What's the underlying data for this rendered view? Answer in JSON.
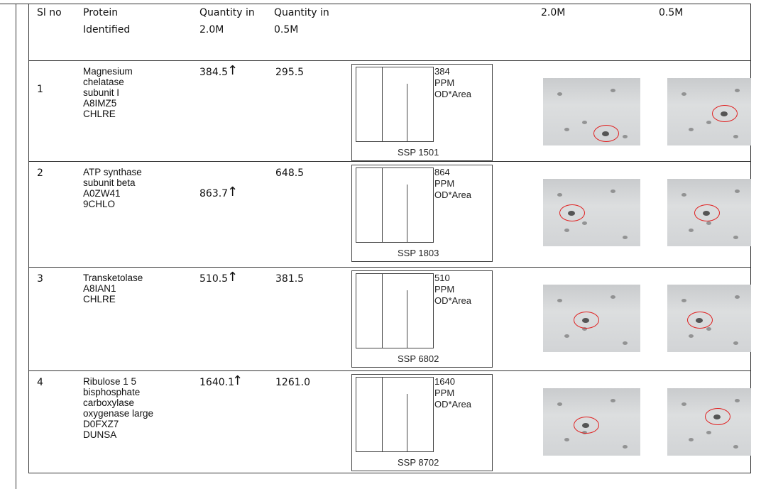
{
  "table": {
    "header": {
      "sl_no": "Sl no",
      "protein": "Protein Identified",
      "qty_2": "Quantity in 2.0M",
      "qty_05": "Quantity in 0.5M",
      "gel_2": "2.0M",
      "gel_05": "0.5M"
    },
    "rows": [
      {
        "sl": "1",
        "protein": [
          "Magnesium",
          "chelatase",
          "subunit I",
          "A8IMZ5",
          "CHLRE"
        ],
        "qty_2": "384.5",
        "trend": "↑",
        "qty_05": "295.5",
        "chart": {
          "scale": "384",
          "unit": "PPM",
          "measure": "OD*Area",
          "ssp": "SSP 1501"
        }
      },
      {
        "sl": "2",
        "protein": [
          "ATP synthase",
          "subunit beta",
          "A0ZW41",
          "9CHLO"
        ],
        "qty_2": "863.7",
        "trend": "↑",
        "qty_05": "648.5",
        "chart": {
          "scale": "864",
          "unit": "PPM",
          "measure": "OD*Area",
          "ssp": "SSP 1803"
        }
      },
      {
        "sl": "3",
        "protein": [
          "Transketolase",
          "A8IAN1",
          "CHLRE"
        ],
        "qty_2": "510.5",
        "trend": "↑",
        "qty_05": "381.5",
        "chart": {
          "scale": "510",
          "unit": "PPM",
          "measure": "OD*Area",
          "ssp": "SSP 6802"
        }
      },
      {
        "sl": "4",
        "protein": [
          "Ribulose 1 5",
          "bisphosphate",
          "carboxylase",
          "oxygenase large",
          "D0FXZ7",
          "DUNSA"
        ],
        "qty_2": "1640.1",
        "trend": "↑",
        "qty_05": "1261.0",
        "chart": {
          "scale": "1640",
          "unit": "PPM",
          "measure": "OD*Area",
          "ssp": "SSP 8702"
        }
      }
    ]
  }
}
